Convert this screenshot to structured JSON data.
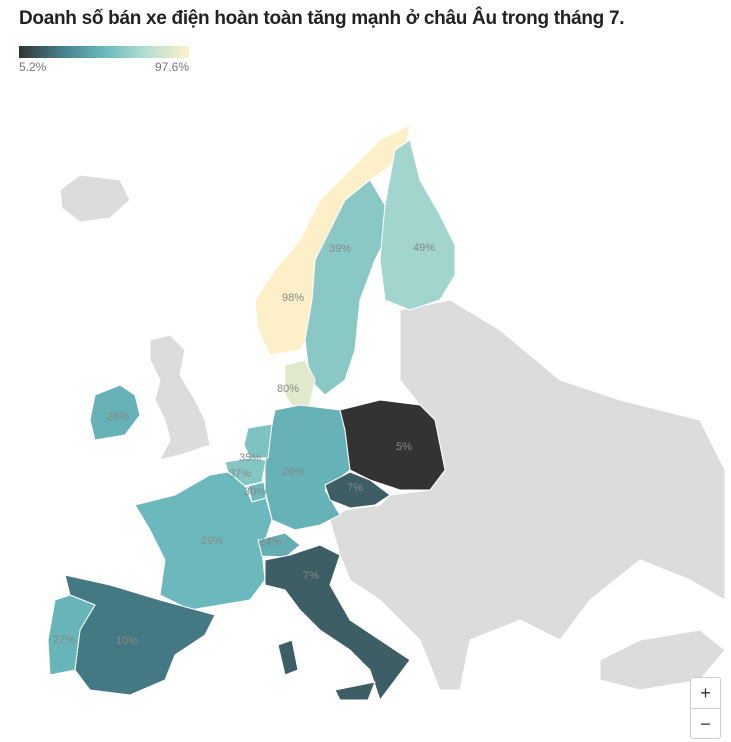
{
  "title": "Doanh số bán xe điện hoàn toàn tăng mạnh ở châu Âu trong tháng 7.",
  "legend": {
    "min": {
      "value": 5.2,
      "label": "5.2%"
    },
    "max": {
      "value": 97.6,
      "label": "97.6%"
    },
    "colors": [
      "#333333",
      "#46808c",
      "#6ab8bc",
      "#b4dfd2",
      "#fdf0c8"
    ]
  },
  "regions": [
    {
      "value": 98,
      "label": "98%"
    },
    {
      "value": 39,
      "label": "39%"
    },
    {
      "value": 49,
      "label": "49%"
    },
    {
      "value": 80,
      "label": "80%"
    },
    {
      "value": 26,
      "label": "26%"
    },
    {
      "value": 26,
      "label": "26%"
    },
    {
      "value": 35,
      "label": "35%"
    },
    {
      "value": 37,
      "label": "37%"
    },
    {
      "value": 30,
      "label": "30%"
    },
    {
      "value": 29,
      "label": "29%"
    },
    {
      "value": 24,
      "label": "24%"
    },
    {
      "value": 5,
      "label": "5%"
    },
    {
      "value": 7,
      "label": "7%"
    },
    {
      "value": 7,
      "label": "7%"
    },
    {
      "value": 10,
      "label": "10%"
    },
    {
      "value": 27,
      "label": "27%"
    }
  ],
  "controls": {
    "zoom_in": "+",
    "zoom_out": "−"
  }
}
